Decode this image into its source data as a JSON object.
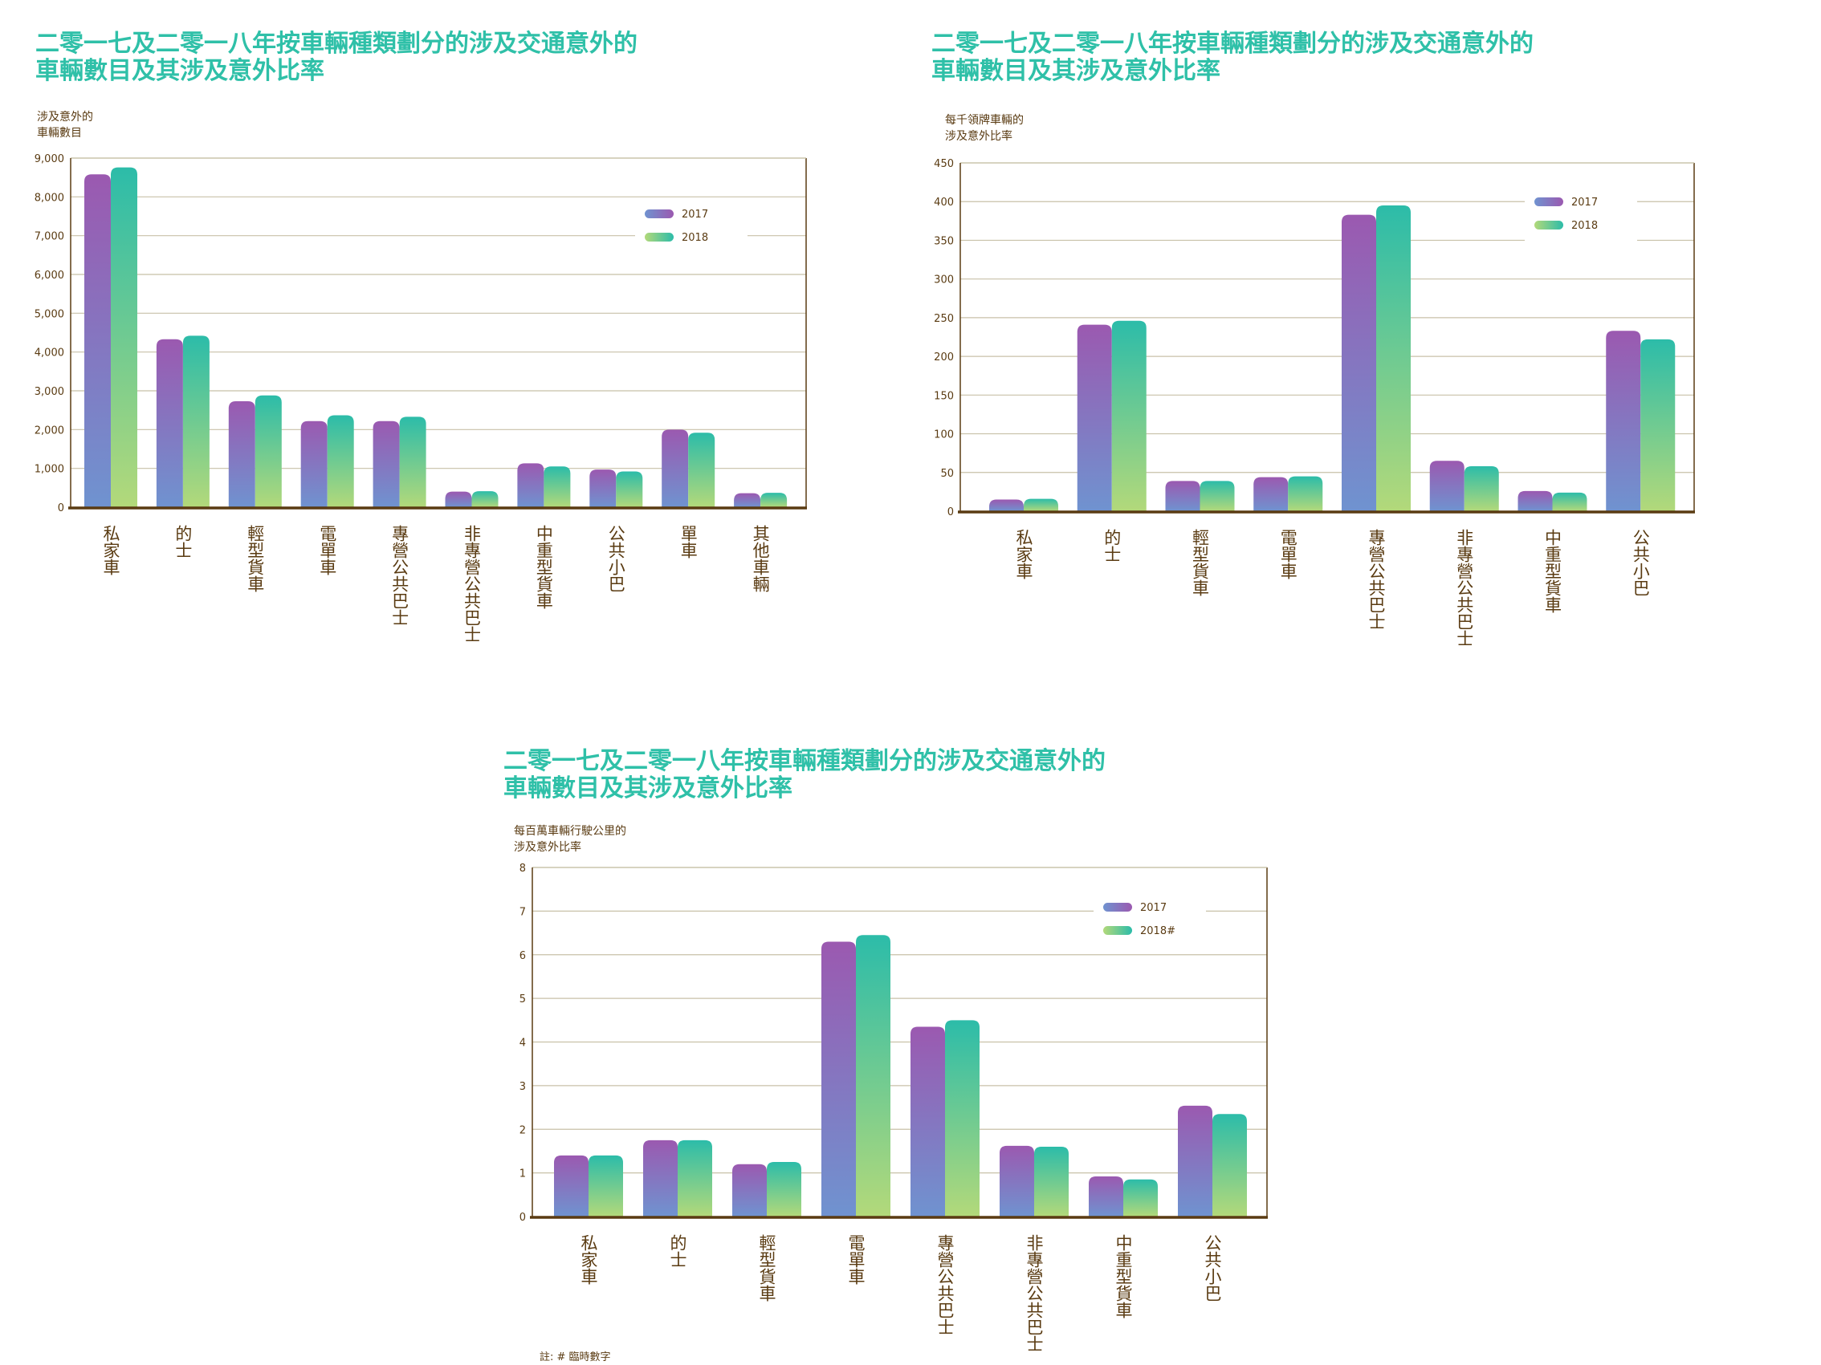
{
  "colors": {
    "title": "#2fc0a8",
    "axis_text": "#5a3b12",
    "axis_line": "#5a3b12",
    "grid": "#c8c1a8",
    "series_2017_top": "#9b59b0",
    "series_2017_bottom": "#6f93d0",
    "series_2018_top": "#2cbca9",
    "series_2018_bottom": "#b3d97a"
  },
  "footnote": "註: # 臨時數字",
  "chart_data": [
    {
      "type": "bar",
      "title": "二零一七及二零一八年按車輛種類劃分的涉及交通意外的\n車輛數目及其涉及意外比率",
      "ylabel": "涉及意外的\n車輛數目",
      "xlabel": "",
      "categories": [
        "私家車",
        "的士",
        "輕型貨車",
        "電單車",
        "專營公共巴士",
        "非專營公共巴士",
        "中重型貨車",
        "公共小巴",
        "單車",
        "其他車輛"
      ],
      "series": [
        {
          "name": "2017",
          "values": [
            8580,
            4330,
            2730,
            2220,
            2220,
            400,
            1130,
            970,
            2000,
            360
          ]
        },
        {
          "name": "2018",
          "values": [
            8760,
            4420,
            2880,
            2370,
            2330,
            410,
            1050,
            920,
            1920,
            370
          ]
        }
      ],
      "ylim": [
        0,
        9000
      ],
      "yticks": [
        "0",
        "1,000",
        "2,000",
        "3,000",
        "4,000",
        "5,000",
        "6,000",
        "7,000",
        "8,000",
        "9,000"
      ],
      "grid": true,
      "legend": "top-right"
    },
    {
      "type": "bar",
      "title": "二零一七及二零一八年按車輛種類劃分的涉及交通意外的\n車輛數目及其涉及意外比率",
      "ylabel": "每千領牌車輛的\n涉及意外比率",
      "xlabel": "",
      "categories": [
        "私家車",
        "的士",
        "輕型貨車",
        "電單車",
        "專營公共巴士",
        "非專營公共巴士",
        "中重型貨車",
        "公共小巴"
      ],
      "series": [
        {
          "name": "2017",
          "values": [
            15,
            241,
            39,
            44,
            383,
            65,
            26,
            233
          ]
        },
        {
          "name": "2018",
          "values": [
            16,
            246,
            39,
            45,
            395,
            58,
            24,
            222
          ]
        }
      ],
      "ylim": [
        0,
        450
      ],
      "yticks": [
        "0",
        "50",
        "100",
        "150",
        "200",
        "250",
        "300",
        "350",
        "400",
        "450"
      ],
      "grid": true,
      "legend": "top-right"
    },
    {
      "type": "bar",
      "title": "二零一七及二零一八年按車輛種類劃分的涉及交通意外的\n車輛數目及其涉及意外比率",
      "ylabel": "每百萬車輛行駛公里的\n涉及意外比率",
      "xlabel": "",
      "categories": [
        "私家車",
        "的士",
        "輕型貨車",
        "電單車",
        "專營公共巴士",
        "非專營公共巴士",
        "中重型貨車",
        "公共小巴"
      ],
      "series": [
        {
          "name": "2017",
          "values": [
            1.4,
            1.75,
            1.2,
            6.3,
            4.35,
            1.62,
            0.92,
            2.54
          ]
        },
        {
          "name": "2018#",
          "values": [
            1.4,
            1.75,
            1.25,
            6.45,
            4.5,
            1.6,
            0.85,
            2.35
          ]
        }
      ],
      "ylim": [
        0,
        8
      ],
      "yticks": [
        "0",
        "1",
        "2",
        "3",
        "4",
        "5",
        "6",
        "7",
        "8"
      ],
      "grid": true,
      "legend": "top-right"
    }
  ]
}
